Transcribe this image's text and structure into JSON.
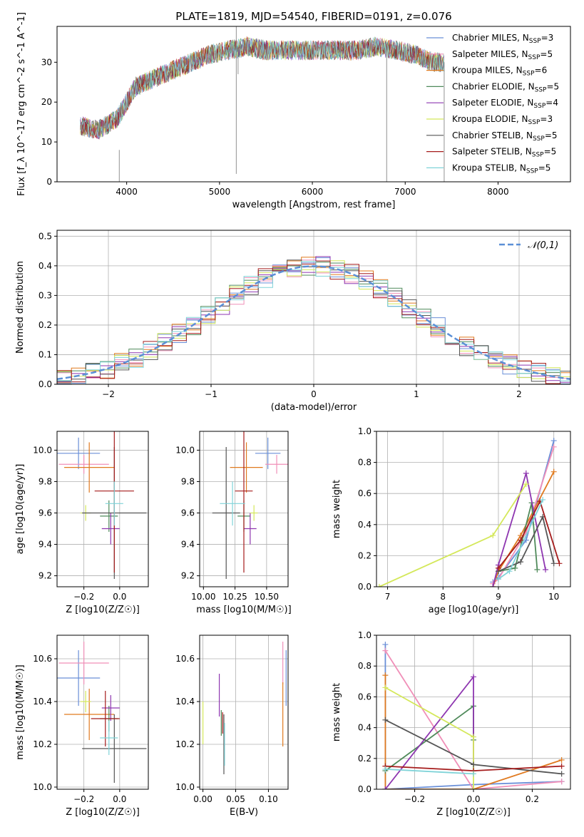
{
  "title": "PLATE=1819, MJD=54540, FIBERID=0191, z=0.076",
  "series_styles": [
    {
      "name": "Chabrier MILES",
      "nssp": "3",
      "color": "#6a8fd8"
    },
    {
      "name": "Salpeter MILES",
      "nssp": "5",
      "color": "#f08fb8"
    },
    {
      "name": "Kroupa MILES",
      "nssp": "6",
      "color": "#e07a1f"
    },
    {
      "name": "Chabrier ELODIE",
      "nssp": "5",
      "color": "#4f8a5a"
    },
    {
      "name": "Salpeter ELODIE",
      "nssp": "4",
      "color": "#8e36b0"
    },
    {
      "name": "Kroupa ELODIE",
      "nssp": "3",
      "color": "#d4e85a"
    },
    {
      "name": "Chabrier STELIB",
      "nssp": "5",
      "color": "#555555"
    },
    {
      "name": "Salpeter STELIB",
      "nssp": "5",
      "color": "#a51c1c"
    },
    {
      "name": "Kroupa STELIB",
      "nssp": "5",
      "color": "#7fd3d8"
    }
  ],
  "chart_data": [
    {
      "id": "spectrum",
      "type": "line",
      "xlabel": "wavelength [Angstrom, rest frame]",
      "ylabel": "Flux [f_λ 10^-17 erg cm^-2 s^-1 A^-1]",
      "xlim": [
        3250,
        8780
      ],
      "ylim": [
        0,
        39
      ],
      "xticks": [
        4000,
        5000,
        6000,
        7000,
        8000
      ],
      "yticks": [
        0,
        10,
        20,
        30
      ],
      "x": [
        3500,
        3700,
        3900,
        4100,
        4300,
        4500,
        4700,
        4900,
        5100,
        5300,
        5500,
        5700,
        5900,
        6100,
        6300,
        6500,
        6700,
        6900,
        7100,
        7300
      ],
      "y": [
        14,
        13,
        16,
        24,
        26,
        28,
        30,
        32,
        33,
        34,
        33,
        33,
        33,
        33,
        33,
        33,
        34,
        33,
        32,
        30
      ],
      "legend": "upper-right"
    },
    {
      "id": "residuals",
      "type": "line",
      "xlabel": "(data-model)/error",
      "ylabel": "Normed distribution",
      "xlim": [
        -2.5,
        2.5
      ],
      "ylim": [
        0,
        0.52
      ],
      "xticks": [
        -2,
        -1,
        0,
        1,
        2
      ],
      "xtick_labels": [
        "−2",
        "−1",
        "0",
        "1",
        "2"
      ],
      "yticks": [
        0.0,
        0.1,
        0.2,
        0.3,
        0.4,
        0.5
      ],
      "reference_curve": {
        "name": "𝒩(0,1)",
        "mu": 0,
        "sigma": 1
      },
      "legend": "upper-right"
    },
    {
      "id": "z-age",
      "type": "scatter",
      "xlabel": "Z [log10(Z/Z☉)]",
      "ylabel": "age [log10(age/yr)]",
      "xlim": [
        -0.35,
        0.16
      ],
      "ylim": [
        9.13,
        10.12
      ],
      "xticks": [
        -0.2,
        0.0
      ],
      "xtick_labels": [
        "−0.2",
        "0.0"
      ],
      "yticks": [
        9.2,
        9.4,
        9.6,
        9.8,
        10.0
      ],
      "points": [
        {
          "x": -0.23,
          "y": 9.98,
          "xerr": 0.12,
          "yerr": 0.1
        },
        {
          "x": -0.2,
          "y": 9.91,
          "xerr": 0.14,
          "yerr": 0.06
        },
        {
          "x": -0.17,
          "y": 9.89,
          "xerr": 0.14,
          "yerr": 0.16
        },
        {
          "x": -0.06,
          "y": 9.58,
          "xerr": 0.05,
          "yerr": 0.1
        },
        {
          "x": -0.05,
          "y": 9.5,
          "xerr": 0.05,
          "yerr": 0.1
        },
        {
          "x": -0.19,
          "y": 9.6,
          "xerr": 0.03,
          "yerr": 0.05
        },
        {
          "x": -0.03,
          "y": 9.6,
          "xerr": 0.18,
          "yerr": 0.42
        },
        {
          "x": -0.03,
          "y": 9.74,
          "xerr": 0.11,
          "yerr": 0.52
        },
        {
          "x": -0.03,
          "y": 9.66,
          "xerr": 0.05,
          "yerr": 0.14
        }
      ]
    },
    {
      "id": "mass-age",
      "type": "scatter",
      "xlabel": "mass [log10(M/M☉)]",
      "ylabel": "",
      "xlim": [
        9.97,
        10.67
      ],
      "ylim": [
        9.13,
        10.12
      ],
      "xticks": [
        10.0,
        10.25,
        10.5
      ],
      "xtick_labels": [
        "10.00",
        "10.25",
        "10.50"
      ],
      "yticks": [
        9.2,
        9.4,
        9.6,
        9.8,
        10.0
      ],
      "points": [
        {
          "x": 10.51,
          "y": 9.98,
          "xerr": 0.1,
          "yerr": 0.1
        },
        {
          "x": 10.58,
          "y": 9.91,
          "xerr": 0.09,
          "yerr": 0.06
        },
        {
          "x": 10.34,
          "y": 9.89,
          "xerr": 0.13,
          "yerr": 0.16
        },
        {
          "x": 10.32,
          "y": 9.58,
          "xerr": 0.05,
          "yerr": 0.1
        },
        {
          "x": 10.37,
          "y": 9.5,
          "xerr": 0.05,
          "yerr": 0.1
        },
        {
          "x": 10.4,
          "y": 9.6,
          "xerr": 0.03,
          "yerr": 0.05
        },
        {
          "x": 10.18,
          "y": 9.6,
          "xerr": 0.11,
          "yerr": 0.42
        },
        {
          "x": 10.32,
          "y": 9.74,
          "xerr": 0.07,
          "yerr": 0.52
        },
        {
          "x": 10.23,
          "y": 9.66,
          "xerr": 0.1,
          "yerr": 0.14
        }
      ]
    },
    {
      "id": "age-weight",
      "type": "line",
      "xlabel": "age [log10(age/yr)]",
      "ylabel": "mass weight",
      "xlim": [
        6.8,
        10.3
      ],
      "ylim": [
        0,
        1
      ],
      "xticks": [
        7,
        8,
        9,
        10
      ],
      "yticks": [
        0.0,
        0.2,
        0.4,
        0.6,
        0.8,
        1.0
      ],
      "series": [
        {
          "x": [
            8.9,
            9.0,
            9.5,
            10.0
          ],
          "y": [
            0.03,
            0.06,
            0.3,
            0.94
          ]
        },
        {
          "x": [
            8.9,
            9.0,
            9.5,
            10.0
          ],
          "y": [
            0.02,
            0.05,
            0.35,
            0.9
          ]
        },
        {
          "x": [
            8.9,
            9.0,
            9.4,
            10.0
          ],
          "y": [
            0.0,
            0.1,
            0.33,
            0.74
          ]
        },
        {
          "x": [
            9.0,
            9.3,
            9.6,
            9.7
          ],
          "y": [
            0.1,
            0.12,
            0.54,
            0.11
          ]
        },
        {
          "x": [
            8.9,
            9.0,
            9.5,
            9.85
          ],
          "y": [
            0.0,
            0.14,
            0.73,
            0.11
          ]
        },
        {
          "x": [
            6.85,
            8.9,
            9.5
          ],
          "y": [
            0.0,
            0.33,
            0.66
          ]
        },
        {
          "x": [
            9.0,
            9.4,
            9.8,
            10.0
          ],
          "y": [
            0.1,
            0.16,
            0.45,
            0.15
          ]
        },
        {
          "x": [
            9.0,
            9.4,
            9.75,
            10.1
          ],
          "y": [
            0.12,
            0.3,
            0.55,
            0.15
          ]
        },
        {
          "x": [
            9.0,
            9.2,
            9.8
          ],
          "y": [
            0.05,
            0.1,
            0.56
          ]
        }
      ]
    },
    {
      "id": "z-mass",
      "type": "scatter",
      "xlabel": "Z [log10(Z/Z☉)]",
      "ylabel": "mass [log10(M/M☉)]",
      "xlim": [
        -0.35,
        0.16
      ],
      "ylim": [
        9.99,
        10.71
      ],
      "xticks": [
        -0.2,
        0.0
      ],
      "xtick_labels": [
        "−0.2",
        "0.0"
      ],
      "yticks": [
        10.0,
        10.2,
        10.4,
        10.6
      ],
      "points": [
        {
          "x": -0.23,
          "y": 10.51,
          "xerr": 0.12,
          "yerr": 0.13
        },
        {
          "x": -0.2,
          "y": 10.58,
          "xerr": 0.14,
          "yerr": 0.1
        },
        {
          "x": -0.17,
          "y": 10.34,
          "xerr": 0.14,
          "yerr": 0.12
        },
        {
          "x": -0.06,
          "y": 10.32,
          "xerr": 0.05,
          "yerr": 0.06
        },
        {
          "x": -0.05,
          "y": 10.37,
          "xerr": 0.05,
          "yerr": 0.06
        },
        {
          "x": -0.19,
          "y": 10.4,
          "xerr": 0.03,
          "yerr": 0.05
        },
        {
          "x": -0.03,
          "y": 10.18,
          "xerr": 0.18,
          "yerr": 0.16
        },
        {
          "x": -0.08,
          "y": 10.32,
          "xerr": 0.08,
          "yerr": 0.13
        },
        {
          "x": -0.06,
          "y": 10.23,
          "xerr": 0.05,
          "yerr": 0.08
        }
      ]
    },
    {
      "id": "ebv-mass",
      "type": "scatter",
      "xlabel": "E(B-V)",
      "ylabel": "",
      "xlim": [
        -0.005,
        0.13
      ],
      "ylim": [
        9.99,
        10.71
      ],
      "xticks": [
        0.0,
        0.05,
        0.1
      ],
      "xtick_labels": [
        "0.00",
        "0.05",
        "0.10"
      ],
      "yticks": [
        10.0,
        10.2,
        10.4,
        10.6
      ],
      "points": [
        {
          "x": 0.127,
          "y": 10.51,
          "xerr": 0,
          "yerr": 0.13
        },
        {
          "x": 0.122,
          "y": 10.58,
          "xerr": 0,
          "yerr": 0.1
        },
        {
          "x": 0.122,
          "y": 10.34,
          "xerr": 0,
          "yerr": 0.15
        },
        {
          "x": 0.028,
          "y": 10.3,
          "xerr": 0,
          "yerr": 0.06
        },
        {
          "x": 0.025,
          "y": 10.43,
          "xerr": 0,
          "yerr": 0.1
        },
        {
          "x": 0.0,
          "y": 10.3,
          "xerr": 0,
          "yerr": 0.1
        },
        {
          "x": 0.032,
          "y": 10.2,
          "xerr": 0,
          "yerr": 0.14
        },
        {
          "x": 0.03,
          "y": 10.3,
          "xerr": 0,
          "yerr": 0.05
        },
        {
          "x": 0.033,
          "y": 10.2,
          "xerr": 0,
          "yerr": 0.1
        }
      ]
    },
    {
      "id": "z-weight",
      "type": "line",
      "xlabel": "Z [log10(Z/Z☉)]",
      "ylabel": "mass weight",
      "xlim": [
        -0.33,
        0.33
      ],
      "ylim": [
        0,
        1
      ],
      "xticks": [
        -0.2,
        0.0,
        0.2
      ],
      "xtick_labels": [
        "−0.2",
        "0.0",
        "0.2"
      ],
      "yticks": [
        0.0,
        0.2,
        0.4,
        0.6,
        0.8,
        1.0
      ],
      "series": [
        {
          "x": [
            -0.3,
            -0.3,
            0.0,
            0.3
          ],
          "y": [
            0.94,
            0.0,
            0.03,
            0.05
          ]
        },
        {
          "x": [
            -0.3,
            0.0,
            0.3
          ],
          "y": [
            0.9,
            0.0,
            0.05
          ]
        },
        {
          "x": [
            -0.3,
            -0.3,
            0.0,
            0.3
          ],
          "y": [
            0.74,
            0.0,
            0.0,
            0.19
          ]
        },
        {
          "x": [
            -0.3,
            0.0,
            0.0
          ],
          "y": [
            0.12,
            0.54,
            0.32
          ]
        },
        {
          "x": [
            -0.3,
            0.0,
            0.0
          ],
          "y": [
            0.0,
            0.73,
            0.12
          ]
        },
        {
          "x": [
            -0.3,
            0.0,
            0.0
          ],
          "y": [
            0.66,
            0.34,
            0.0
          ]
        },
        {
          "x": [
            -0.3,
            0.0,
            0.3
          ],
          "y": [
            0.45,
            0.16,
            0.1
          ]
        },
        {
          "x": [
            -0.3,
            0.0,
            0.3
          ],
          "y": [
            0.15,
            0.12,
            0.15
          ]
        },
        {
          "x": [
            -0.3,
            0.0
          ],
          "y": [
            0.13,
            0.1
          ]
        }
      ]
    }
  ]
}
